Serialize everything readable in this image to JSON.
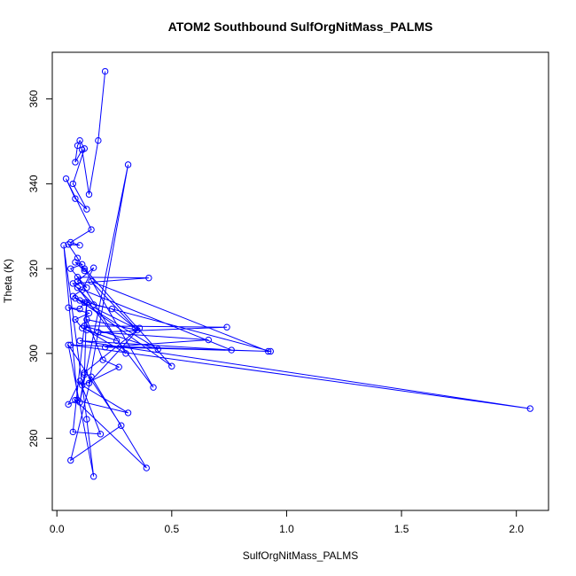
{
  "chart_data": {
    "type": "line",
    "title": "ATOM2 Southbound SulfOrgNitMass_PALMS",
    "xlabel": "SulfOrgNitMass_PALMS",
    "ylabel": "Theta (K)",
    "xlim": [
      -0.02,
      2.14
    ],
    "ylim": [
      263,
      371
    ],
    "x_ticks": [
      0.0,
      0.5,
      1.0,
      1.5,
      2.0
    ],
    "x_tick_labels": [
      "0.0",
      "0.5",
      "1.0",
      "1.5",
      "2.0"
    ],
    "y_ticks": [
      280,
      300,
      320,
      340,
      360
    ],
    "y_tick_labels": [
      "280",
      "300",
      "320",
      "340",
      "360"
    ],
    "grid": false,
    "legend": "none",
    "series": [
      {
        "color": "#0000ff",
        "marker": "open-circle",
        "x": [
          0.21,
          0.18,
          0.14,
          0.11,
          0.08,
          0.09,
          0.1,
          0.12,
          0.07,
          0.13,
          0.08,
          0.04,
          0.15,
          0.06,
          0.1,
          0.05,
          0.09,
          0.12,
          0.08,
          0.11,
          0.06,
          0.13,
          0.09,
          0.16,
          0.11,
          0.07,
          0.12,
          0.1,
          0.05,
          0.14,
          0.08,
          0.11,
          0.26,
          0.13,
          0.3,
          0.09,
          0.4,
          0.07,
          0.16,
          0.24,
          0.34,
          0.08,
          0.44,
          0.12,
          0.74,
          0.18,
          0.66,
          0.21,
          0.93,
          0.1,
          0.5,
          0.12,
          0.42,
          0.09,
          0.76,
          0.1,
          2.06,
          0.06,
          0.92,
          0.15,
          0.35,
          0.13,
          0.2,
          0.27,
          0.11,
          0.31,
          0.08,
          0.39,
          0.15,
          0.06,
          0.28,
          0.05,
          0.16,
          0.13,
          0.03,
          0.09,
          0.05,
          0.1,
          0.19,
          0.07,
          0.13,
          0.12,
          0.1,
          0.31,
          0.14,
          0.36,
          0.12
        ],
        "y": [
          366.5,
          350.2,
          337.5,
          348.0,
          345.1,
          349.0,
          350.2,
          348.3,
          340.0,
          334.0,
          336.5,
          341.2,
          329.2,
          326.2,
          325.5,
          325.7,
          322.5,
          319.5,
          321.5,
          321.0,
          320.0,
          315.5,
          317.0,
          320.2,
          315.0,
          313.5,
          312.0,
          310.5,
          310.8,
          309.5,
          308.0,
          306.0,
          303.0,
          305.5,
          300.0,
          318.0,
          317.8,
          316.5,
          311.5,
          310.5,
          306.0,
          313.0,
          301.0,
          306.5,
          306.2,
          305.0,
          303.2,
          301.5,
          300.5,
          312.5,
          297.0,
          320.0,
          292.0,
          315.5,
          300.8,
          303.0,
          287.0,
          302.0,
          300.5,
          317.0,
          305.5,
          308.0,
          298.5,
          296.8,
          292.5,
          286.0,
          289.0,
          273.0,
          294.5,
          274.8,
          283.0,
          302.0,
          271.0,
          284.5,
          325.5,
          289.0,
          288.0,
          293.5,
          281.0,
          281.5,
          312.0,
          295.0,
          288.5,
          344.5,
          293.0,
          306.0,
          295.5
        ]
      }
    ]
  }
}
